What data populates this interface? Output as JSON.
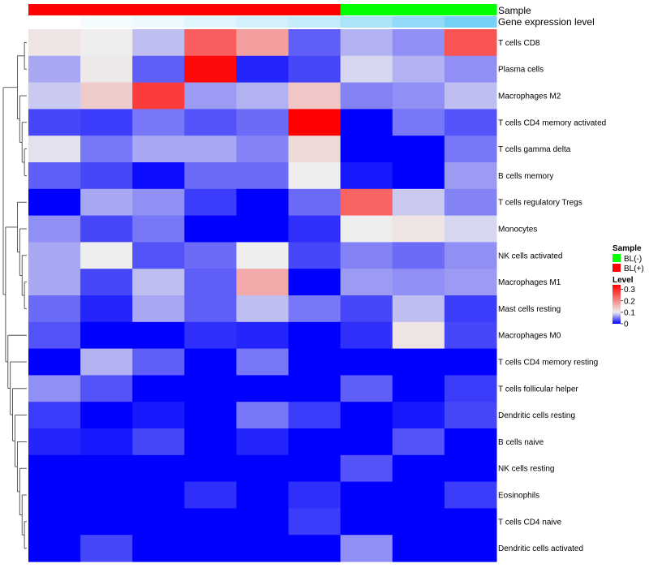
{
  "chart_data": {
    "type": "heatmap",
    "annotation_labels": {
      "sample": "Sample",
      "gene_expression": "Gene expression level"
    },
    "columns": [
      {
        "sample": "BL(+)",
        "gene_level": 0.0
      },
      {
        "sample": "BL(+)",
        "gene_level": 0.06
      },
      {
        "sample": "BL(+)",
        "gene_level": 0.12
      },
      {
        "sample": "BL(+)",
        "gene_level": 0.19
      },
      {
        "sample": "BL(+)",
        "gene_level": 0.27
      },
      {
        "sample": "BL(+)",
        "gene_level": 0.36
      },
      {
        "sample": "BL(-)",
        "gene_level": 0.52
      },
      {
        "sample": "BL(-)",
        "gene_level": 0.68
      },
      {
        "sample": "BL(-)",
        "gene_level": 0.85
      }
    ],
    "rows": [
      "T cells CD8",
      "Plasma cells",
      "Macrophages M2",
      "T cells CD4 memory activated",
      "T cells gamma delta",
      "B cells memory",
      "T cells regulatory  Tregs",
      "Monocytes",
      "NK cells activated",
      "Macrophages M1",
      "Mast cells resting",
      "Macrophages M0",
      "T cells CD4 memory resting",
      "T cells follicular helper",
      "Dendritic cells resting",
      "B cells naive",
      "NK cells resting",
      "Eosinophils",
      "T cells CD4 naive",
      "Dendritic cells activated"
    ],
    "values": [
      [
        0.11,
        0.1,
        0.08,
        0.245,
        0.18,
        0.04,
        0.075,
        0.06,
        0.255
      ],
      [
        0.07,
        0.105,
        0.04,
        0.33,
        0.015,
        0.03,
        0.09,
        0.075,
        0.06
      ],
      [
        0.085,
        0.135,
        0.28,
        0.065,
        0.075,
        0.14,
        0.055,
        0.06,
        0.08
      ],
      [
        0.03,
        0.025,
        0.05,
        0.035,
        0.045,
        0.34,
        0.0,
        0.05,
        0.035
      ],
      [
        0.095,
        0.05,
        0.07,
        0.07,
        0.055,
        0.12,
        0.0,
        0.0,
        0.05
      ],
      [
        0.04,
        0.03,
        0.005,
        0.045,
        0.045,
        0.1,
        0.01,
        0.0,
        0.065
      ],
      [
        0.0,
        0.07,
        0.06,
        0.025,
        0.0,
        0.045,
        0.24,
        0.085,
        0.055
      ],
      [
        0.06,
        0.03,
        0.05,
        0.0,
        0.0,
        0.02,
        0.1,
        0.11,
        0.09
      ],
      [
        0.07,
        0.1,
        0.035,
        0.045,
        0.1,
        0.03,
        0.055,
        0.045,
        0.06
      ],
      [
        0.07,
        0.03,
        0.08,
        0.04,
        0.17,
        0.0,
        0.065,
        0.06,
        0.065
      ],
      [
        0.045,
        0.015,
        0.07,
        0.04,
        0.08,
        0.05,
        0.03,
        0.08,
        0.025
      ],
      [
        0.035,
        0.0,
        0.0,
        0.02,
        0.015,
        0.0,
        0.02,
        0.11,
        0.03
      ],
      [
        0.0,
        0.075,
        0.04,
        0.0,
        0.05,
        0.0,
        0.0,
        0.0,
        0.0
      ],
      [
        0.06,
        0.035,
        0.0,
        0.0,
        0.0,
        0.0,
        0.04,
        0.0,
        0.025
      ],
      [
        0.025,
        0.0,
        0.01,
        0.0,
        0.05,
        0.025,
        0.0,
        0.01,
        0.03
      ],
      [
        0.015,
        0.01,
        0.03,
        0.0,
        0.015,
        0.0,
        0.0,
        0.035,
        0.0
      ],
      [
        0.0,
        0.0,
        0.0,
        0.0,
        0.0,
        0.0,
        0.035,
        0.0,
        0.0
      ],
      [
        0.0,
        0.0,
        0.0,
        0.02,
        0.0,
        0.02,
        0.0,
        0.0,
        0.025
      ],
      [
        0.0,
        0.0,
        0.0,
        0.0,
        0.0,
        0.025,
        0.0,
        0.0,
        0.0
      ],
      [
        0.0,
        0.03,
        0.0,
        0.0,
        0.0,
        0.0,
        0.06,
        0.0,
        0.0
      ]
    ],
    "color_scale": {
      "min": 0,
      "mid": 0.1,
      "max": 0.34,
      "low_color": "#0000ff",
      "mid_color": "#eeeeee",
      "high_color": "#ff0000"
    },
    "gene_level_colors": {
      "low": "#ffffff",
      "high": "#5ec9f4"
    },
    "legend": {
      "sample_title": "Sample",
      "sample_items": [
        {
          "label": "BL(-)",
          "color": "#00ff00"
        },
        {
          "label": "BL(+)",
          "color": "#ff0000"
        }
      ],
      "level_title": "Level",
      "level_ticks": [
        {
          "value": 0.3,
          "label": "0.3"
        },
        {
          "value": 0.2,
          "label": "0.2"
        },
        {
          "value": 0.1,
          "label": "0.1"
        },
        {
          "value": 0.0,
          "label": "0"
        }
      ],
      "placement": "right"
    },
    "dendrogram": "rows"
  }
}
